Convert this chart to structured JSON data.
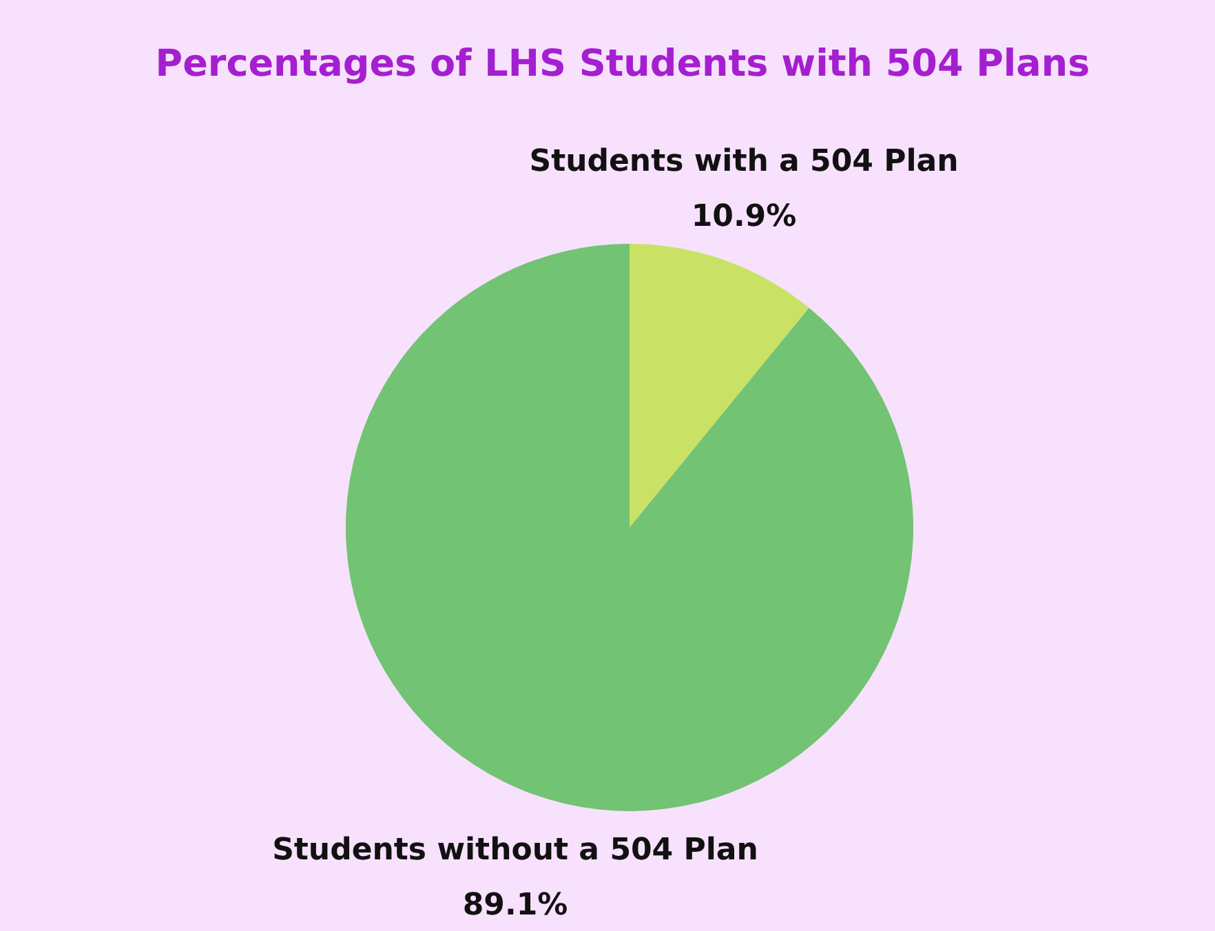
{
  "chart_data": {
    "type": "pie",
    "title": "Percentages of LHS Students with 504 Plans",
    "categories": [
      "Students with a 504 Plan",
      "Students without a 504 Plan"
    ],
    "values": [
      10.9,
      89.1
    ],
    "colors": [
      "#c9e265",
      "#72c373"
    ],
    "value_labels": [
      "10.9%",
      "89.1%"
    ]
  }
}
